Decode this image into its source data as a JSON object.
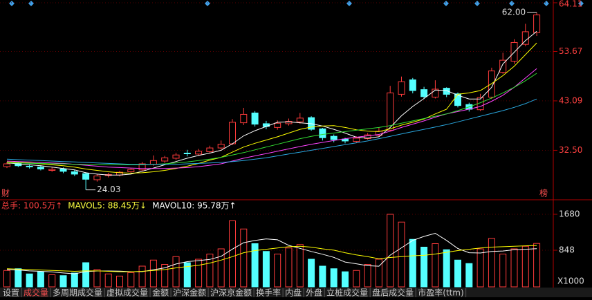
{
  "left_badge": "财",
  "right_badge": "榜",
  "tabs": [
    "设置",
    "成交量",
    "多周期成交量",
    "虚拟成交量",
    "金额",
    "沪深金额",
    "沪深京金额",
    "换手率",
    "内盘",
    "外盘",
    "立桩成交量",
    "盘后成交量",
    "市盈率(ttm)"
  ],
  "chart_data": [
    {
      "type": "candlestick",
      "open": [
        29.0,
        29.7,
        29.1,
        28.9,
        28.2,
        28.5,
        27.9,
        27.5,
        26.2,
        27.1,
        27.2,
        27.9,
        28.3,
        29.5,
        30.2,
        30.8,
        31.9,
        31.7,
        32.2,
        33.0,
        33.9,
        38.4,
        40.5,
        38.2,
        37.4,
        38.2,
        38.6,
        39.5,
        37.1,
        35.5,
        34.9,
        34.4,
        35.0,
        35.7,
        36.8,
        44.5,
        47.6,
        45.5,
        43.9,
        45.8,
        44.6,
        42.3,
        41.2,
        43.9,
        49.2,
        51.6,
        55.2,
        57.7
      ],
      "high": [
        30.0,
        30.1,
        29.5,
        29.3,
        28.9,
        28.8,
        28.3,
        27.8,
        27.4,
        27.7,
        28.1,
        28.7,
        30.0,
        31.4,
        31.3,
        32.0,
        32.6,
        32.8,
        33.5,
        34.6,
        39.2,
        41.6,
        40.9,
        38.8,
        38.9,
        39.3,
        40.5,
        39.8,
        37.3,
        35.9,
        35.2,
        35.5,
        36.2,
        37.4,
        46.3,
        48.3,
        48.0,
        46.1,
        47.5,
        46.0,
        44.9,
        42.7,
        44.6,
        50.2,
        53.4,
        56.3,
        59.6,
        62.0
      ],
      "low": [
        28.7,
        28.9,
        28.6,
        28.2,
        27.9,
        27.6,
        27.0,
        24.03,
        25.8,
        26.7,
        26.9,
        27.5,
        28.1,
        29.2,
        29.8,
        30.4,
        31.2,
        31.3,
        31.9,
        32.7,
        33.6,
        37.9,
        37.6,
        37.0,
        36.9,
        37.8,
        38.2,
        36.7,
        34.6,
        34.2,
        34.0,
        34.1,
        34.8,
        35.4,
        36.6,
        44.0,
        44.7,
        43.5,
        43.6,
        43.9,
        41.7,
        40.8,
        40.9,
        43.5,
        48.9,
        51.0,
        54.8,
        57.0
      ],
      "close": [
        29.6,
        29.2,
        29.0,
        28.5,
        28.4,
        28.0,
        27.4,
        26.3,
        27.0,
        27.3,
        27.8,
        28.4,
        29.6,
        30.3,
        30.9,
        31.5,
        31.8,
        32.3,
        33.0,
        33.8,
        38.5,
        40.2,
        38.1,
        37.6,
        38.3,
        38.7,
        39.4,
        37.0,
        35.2,
        34.8,
        34.5,
        35.1,
        35.8,
        36.6,
        44.8,
        47.2,
        45.3,
        44.0,
        45.6,
        44.5,
        42.1,
        41.3,
        43.8,
        49.5,
        51.8,
        55.6,
        57.9,
        61.5
      ],
      "up_color": "#ff3b3b",
      "down_color": "#54ffff",
      "series": [
        {
          "color": "#ffffff",
          "values": [
            29.8,
            29.6,
            29.4,
            29.2,
            28.9,
            28.6,
            28.3,
            27.7,
            27.4,
            27.2,
            27.2,
            27.4,
            28.0,
            28.7,
            29.4,
            30.1,
            30.8,
            31.4,
            31.9,
            32.5,
            33.9,
            35.6,
            36.7,
            37.6,
            38.5,
            38.6,
            38.4,
            38.2,
            37.7,
            37.0,
            36.2,
            35.3,
            35.1,
            35.4,
            37.4,
            39.9,
            41.9,
            43.6,
            45.4,
            45.3,
            44.3,
            43.5,
            43.5,
            46.0,
            51.0,
            53.5,
            56.0,
            58.0
          ]
        },
        {
          "color": "#ffff00",
          "values": [
            30.0,
            29.9,
            29.8,
            29.6,
            29.4,
            29.2,
            28.9,
            28.5,
            28.2,
            27.9,
            27.7,
            27.6,
            27.7,
            27.9,
            28.2,
            28.6,
            29.1,
            29.7,
            30.4,
            31.0,
            32.1,
            33.2,
            34.0,
            34.7,
            35.4,
            36.2,
            37.0,
            37.5,
            37.7,
            37.8,
            37.4,
            36.9,
            36.6,
            36.5,
            37.1,
            37.9,
            38.5,
            39.2,
            40.3,
            41.3,
            44.5,
            44.8,
            45.3,
            46.8,
            48.5,
            50.5,
            53.0,
            55.5
          ]
        },
        {
          "color": "#ff44ff",
          "values": [
            30.2,
            30.1,
            30.0,
            29.9,
            29.8,
            29.7,
            29.5,
            29.3,
            29.1,
            28.9,
            28.8,
            28.7,
            28.6,
            28.6,
            28.6,
            28.7,
            28.8,
            29.0,
            29.3,
            29.6,
            30.2,
            30.8,
            31.3,
            31.8,
            32.3,
            32.8,
            33.3,
            33.8,
            34.2,
            34.6,
            35.0,
            35.3,
            35.6,
            35.9,
            36.6,
            37.4,
            38.1,
            38.8,
            39.6,
            40.3,
            40.8,
            41.3,
            41.9,
            43.0,
            44.3,
            46.0,
            48.0,
            50.0
          ]
        },
        {
          "color": "#33dd33",
          "values": [
            29.8,
            29.8,
            29.7,
            29.7,
            29.6,
            29.6,
            29.5,
            29.5,
            29.4,
            29.4,
            29.4,
            29.4,
            29.4,
            29.5,
            29.6,
            29.8,
            30.0,
            30.3,
            30.6,
            31.0,
            31.5,
            32.0,
            32.6,
            33.2,
            33.8,
            34.4,
            35.0,
            35.5,
            35.9,
            36.2,
            36.5,
            36.8,
            37.1,
            37.4,
            37.8,
            38.3,
            38.8,
            39.3,
            39.8,
            40.3,
            41.0,
            41.8,
            42.7,
            43.7,
            44.8,
            46.0,
            47.4,
            49.0
          ]
        },
        {
          "color": "#2aa8e0",
          "values": [
            30.6,
            30.5,
            30.4,
            30.3,
            30.2,
            30.1,
            30.0,
            29.9,
            29.8,
            29.7,
            29.6,
            29.5,
            29.5,
            29.5,
            29.5,
            29.5,
            29.6,
            29.7,
            29.8,
            29.9,
            30.1,
            30.3,
            30.6,
            30.9,
            31.3,
            31.7,
            32.1,
            32.5,
            32.9,
            33.3,
            33.7,
            34.1,
            34.5,
            35.0,
            35.5,
            36.0,
            36.5,
            37.0,
            37.5,
            38.0,
            38.6,
            39.2,
            39.8,
            40.4,
            41.0,
            41.7,
            42.5,
            43.5
          ]
        }
      ],
      "ylim": [
        22.2,
        64.7
      ],
      "yticks": [
        {
          "value": 32.5,
          "label": "32.50"
        },
        {
          "value": 43.09,
          "label": "43.09"
        },
        {
          "value": 53.67,
          "label": "53.67"
        },
        {
          "value": 64.11,
          "label": "64.11"
        }
      ],
      "high_label": {
        "value": 62,
        "label": "62.00"
      },
      "low_label": {
        "value": 24.03,
        "label": "24.03"
      }
    },
    {
      "type": "bar",
      "header": [
        {
          "text": "总手: 100.5万↑",
          "color": "#ff4040"
        },
        {
          "text": "MAVOL5: 88.45万↓",
          "color": "#ffff40"
        },
        {
          "text": "MAVOL10: 95.78万↑",
          "color": "#ffffff"
        }
      ],
      "values": [
        380,
        420,
        300,
        350,
        280,
        260,
        320,
        560,
        400,
        300,
        250,
        330,
        480,
        620,
        520,
        700,
        560,
        640,
        760,
        880,
        1530,
        1340,
        1000,
        820,
        760,
        900,
        980,
        640,
        480,
        420,
        350,
        380,
        520,
        640,
        1680,
        1500,
        1100,
        920,
        1000,
        860,
        620,
        540,
        880,
        1120,
        760,
        880,
        940,
        1005
      ],
      "series": [
        {
          "color": "#ffffff",
          "values": [
            400,
            390,
            370,
            360,
            346,
            322,
            302,
            354,
            368,
            368,
            364,
            352,
            352,
            396,
            440,
            530,
            584,
            608,
            636,
            708,
            874,
            1022,
            1074,
            1110,
            1090,
            960,
            892,
            820,
            756,
            684,
            574,
            534,
            490,
            478,
            734,
            904,
            1076,
            1168,
            1240,
            1076,
            888,
            790,
            784,
            820,
            830,
            860,
            870,
            884.5
          ]
        },
        {
          "color": "#ffff00",
          "values": [
            420,
            410,
            400,
            390,
            380,
            370,
            360,
            370,
            370,
            360,
            350,
            350,
            360,
            380,
            400,
            440,
            470,
            500,
            550,
            620,
            700,
            790,
            840,
            870,
            900,
            930,
            940,
            920,
            880,
            850,
            790,
            740,
            700,
            650,
            680,
            700,
            720,
            730,
            760,
            800,
            840,
            870,
            900,
            920,
            930,
            940,
            950,
            957.8
          ]
        }
      ],
      "ylim": [
        0,
        1840
      ],
      "yticks": [
        848,
        1680
      ],
      "unit": "X1000"
    }
  ]
}
